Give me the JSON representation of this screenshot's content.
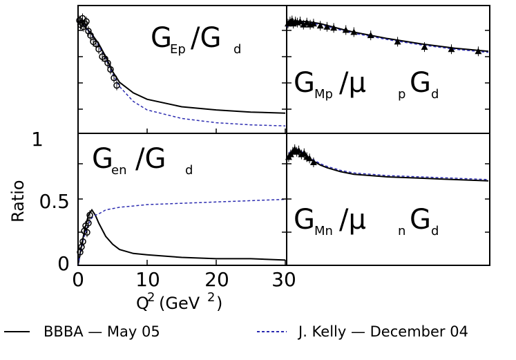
{
  "chart_data": [
    {
      "type": "line",
      "panel": "top-left",
      "title": {
        "main": "G",
        "sub": "Ep",
        "rest": "/G",
        "rsub": "d"
      },
      "xlim": [
        0,
        30
      ],
      "ylim": [
        0,
        1.2
      ],
      "series": [
        {
          "name": "BBBA - May 05",
          "style": "solid",
          "x": [
            0.3,
            1,
            2,
            3,
            4,
            5,
            6,
            8,
            10,
            15,
            20,
            25,
            30
          ],
          "y": [
            1.06,
            1.0,
            0.93,
            0.84,
            0.72,
            0.58,
            0.48,
            0.38,
            0.32,
            0.25,
            0.22,
            0.2,
            0.19
          ]
        },
        {
          "name": "J. Kelly - December 04",
          "style": "dashed",
          "x": [
            0.3,
            1,
            2,
            3,
            4,
            5,
            6,
            8,
            10,
            15,
            20,
            25,
            30
          ],
          "y": [
            1.06,
            1.0,
            0.92,
            0.82,
            0.7,
            0.56,
            0.44,
            0.3,
            0.22,
            0.14,
            0.1,
            0.08,
            0.07
          ]
        }
      ],
      "points": {
        "marker": "circle",
        "x": [
          0.2,
          0.35,
          0.5,
          0.65,
          0.8,
          1.0,
          1.2,
          1.5,
          1.8,
          2.2,
          2.6,
          3.0,
          3.5,
          3.9,
          4.3,
          4.7,
          5.2,
          5.6
        ],
        "y": [
          1.06,
          1.02,
          1.04,
          1.08,
          1.0,
          1.03,
          1.05,
          0.96,
          0.92,
          0.86,
          0.84,
          0.79,
          0.72,
          0.7,
          0.66,
          0.6,
          0.52,
          0.45
        ]
      }
    },
    {
      "type": "line",
      "panel": "top-right",
      "title": {
        "main": "G",
        "sub": "Mp",
        "rest": "/μ",
        "psub": "p",
        "end": "G",
        "esub": "d"
      },
      "xlim": [
        0,
        30
      ],
      "ylim": [
        0,
        1.2
      ],
      "series": [
        {
          "name": "BBBA - May 05",
          "style": "solid",
          "x": [
            0,
            1,
            2,
            3,
            5,
            8,
            10,
            15,
            20,
            25,
            30
          ],
          "y": [
            1.0,
            1.04,
            1.05,
            1.05,
            1.03,
            0.98,
            0.95,
            0.89,
            0.84,
            0.8,
            0.77
          ]
        },
        {
          "name": "J. Kelly - December 04",
          "style": "dashed",
          "x": [
            0,
            1,
            2,
            3,
            5,
            8,
            10,
            15,
            20,
            25,
            30
          ],
          "y": [
            1.0,
            1.03,
            1.04,
            1.04,
            1.02,
            0.97,
            0.94,
            0.88,
            0.83,
            0.79,
            0.76
          ]
        }
      ],
      "points": {
        "marker": "triangle",
        "x": [
          0.2,
          0.5,
          0.8,
          1.0,
          1.3,
          1.6,
          2.0,
          2.5,
          3.0,
          3.5,
          4.0,
          5.0,
          6.0,
          7.0,
          8.8,
          10.0,
          12.5,
          16.5,
          20.5,
          24.5,
          28.5
        ],
        "y": [
          1.03,
          1.05,
          1.06,
          1.03,
          1.05,
          1.04,
          1.05,
          1.02,
          1.04,
          1.02,
          1.03,
          1.01,
          1.0,
          0.99,
          0.97,
          0.95,
          0.92,
          0.86,
          0.81,
          0.79,
          0.77
        ]
      }
    },
    {
      "type": "line",
      "panel": "bottom-left",
      "title": {
        "main": "G",
        "sub": "en",
        "rest": "/G",
        "rsub": "d"
      },
      "xlim": [
        0,
        30
      ],
      "ylim": [
        0,
        1
      ],
      "series": [
        {
          "name": "BBBA - May 05",
          "style": "solid",
          "x": [
            0,
            0.5,
            1,
            1.5,
            2,
            2.5,
            3,
            4,
            5,
            6,
            8,
            10,
            15,
            20,
            25,
            30
          ],
          "y": [
            0.0,
            0.15,
            0.28,
            0.38,
            0.42,
            0.38,
            0.32,
            0.22,
            0.16,
            0.12,
            0.09,
            0.08,
            0.06,
            0.05,
            0.05,
            0.04
          ]
        },
        {
          "name": "J. Kelly - December 04",
          "style": "dashed",
          "x": [
            0,
            0.5,
            1,
            1.5,
            2,
            2.5,
            3,
            4,
            5,
            6,
            8,
            10,
            15,
            20,
            25,
            30
          ],
          "y": [
            0.0,
            0.14,
            0.24,
            0.31,
            0.36,
            0.38,
            0.39,
            0.42,
            0.43,
            0.44,
            0.45,
            0.46,
            0.47,
            0.48,
            0.49,
            0.5
          ]
        }
      ],
      "points": {
        "marker": "circle",
        "x": [
          0.3,
          0.5,
          0.7,
          0.9,
          1.1,
          1.3,
          1.5,
          1.7
        ],
        "y": [
          0.1,
          0.14,
          0.18,
          0.26,
          0.3,
          0.25,
          0.32,
          0.38
        ]
      }
    },
    {
      "type": "line",
      "panel": "bottom-right",
      "title": {
        "main": "G",
        "sub": "Mn",
        "rest": "/μ",
        "psub": "n",
        "end": "G",
        "esub": "d"
      },
      "xlim": [
        0,
        30
      ],
      "ylim": [
        0,
        1
      ],
      "series": [
        {
          "name": "BBBA - May 05",
          "style": "solid",
          "x": [
            0,
            0.5,
            1,
            1.5,
            2,
            3,
            4,
            5,
            6,
            8,
            10,
            15,
            20,
            25,
            30
          ],
          "y": [
            0.8,
            0.85,
            0.87,
            0.87,
            0.86,
            0.82,
            0.79,
            0.76,
            0.74,
            0.71,
            0.69,
            0.67,
            0.66,
            0.65,
            0.64
          ]
        },
        {
          "name": "J. Kelly - December 04",
          "style": "dashed",
          "x": [
            0,
            0.5,
            1,
            1.5,
            2,
            3,
            4,
            5,
            6,
            8,
            10,
            15,
            20,
            25,
            30
          ],
          "y": [
            0.81,
            0.86,
            0.88,
            0.88,
            0.87,
            0.83,
            0.8,
            0.77,
            0.75,
            0.72,
            0.7,
            0.68,
            0.67,
            0.66,
            0.65
          ]
        }
      ],
      "points": {
        "marker": "triangle",
        "x": [
          0.3,
          0.6,
          0.9,
          1.2,
          1.5,
          1.8,
          2.2,
          2.6,
          3.0,
          3.4,
          4.0
        ],
        "y": [
          0.82,
          0.84,
          0.86,
          0.88,
          0.86,
          0.87,
          0.84,
          0.85,
          0.82,
          0.81,
          0.78
        ]
      }
    }
  ],
  "axes": {
    "y_title": "Ratio",
    "x_title": "Q",
    "x_title_sup": "2",
    "x_title_unit_open": "(GeV",
    "x_title_unit_sup": "2",
    "x_title_unit_close": ")",
    "y_ticks": [
      "1",
      "0.5",
      "0"
    ],
    "x_ticks": [
      "0",
      "10",
      "20",
      "30"
    ],
    "x_tick_values": [
      0,
      10,
      20,
      30
    ],
    "y_tick_values": [
      1,
      0.5,
      0
    ]
  },
  "legend": {
    "items": [
      {
        "label": "BBBA — May 05",
        "style": "solid"
      },
      {
        "label": "J. Kelly — December 04",
        "style": "dashed"
      }
    ]
  },
  "colors": {
    "bbba": "#000000",
    "kelly": "#2b2bb0",
    "frame": "#000000"
  }
}
